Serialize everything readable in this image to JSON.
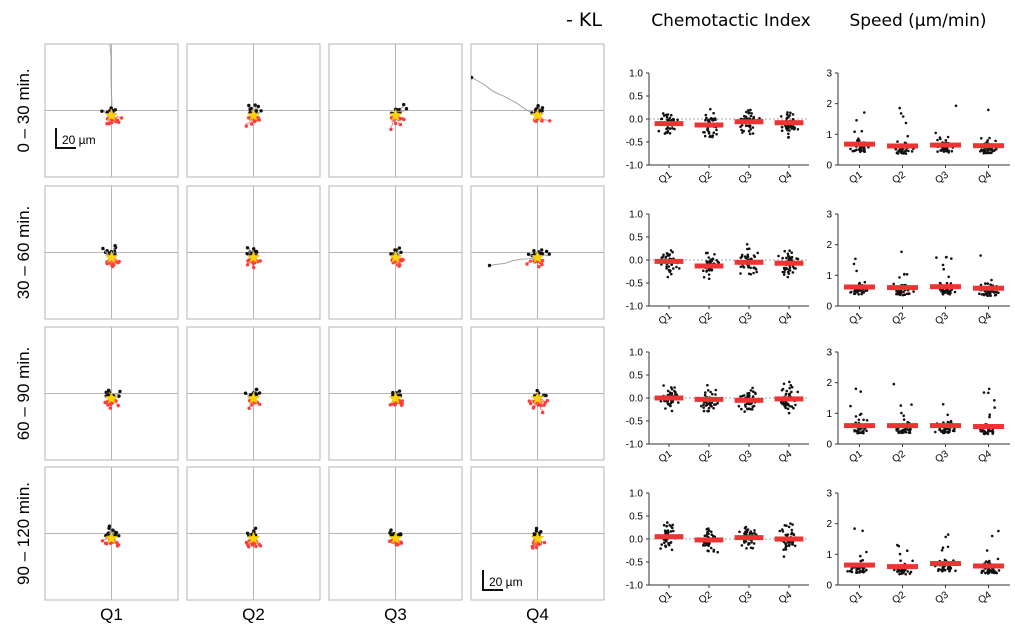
{
  "figure": {
    "condition_label": "- KL",
    "ci_title": "Chemotactic Index",
    "speed_title": "Speed (µm/min)",
    "row_labels": [
      "0 – 30 min.",
      "30 – 60 min.",
      "60 – 90 min.",
      "90 – 120 min."
    ],
    "column_labels": [
      "Q1",
      "Q2",
      "Q3",
      "Q4"
    ],
    "scale_bar_label": "20 µm",
    "colors": {
      "toward": "#ff3b3b",
      "away": "#111111",
      "track_away": "#999999",
      "star": "#ffd400",
      "mean_bar": "#ee3333"
    }
  },
  "chart_data": [
    {
      "type": "scatter",
      "title": "Chemotactic Index",
      "row": "0 – 30 min.",
      "categories": [
        "Q1",
        "Q2",
        "Q3",
        "Q4"
      ],
      "ylim": [
        -1.0,
        1.0
      ],
      "yticks": [
        "1.0",
        "0.5",
        "0.0",
        "-0.5",
        "-1.0"
      ],
      "means": [
        -0.1,
        -0.13,
        -0.06,
        -0.08
      ]
    },
    {
      "type": "scatter",
      "title": "Speed (µm/min)",
      "row": "0 – 30 min.",
      "categories": [
        "Q1",
        "Q2",
        "Q3",
        "Q4"
      ],
      "ylim": [
        0,
        3
      ],
      "yticks": [
        "3",
        "2",
        "1",
        "0"
      ],
      "means": [
        0.68,
        0.62,
        0.65,
        0.63
      ]
    },
    {
      "type": "scatter",
      "title": "Chemotactic Index",
      "row": "30 – 60 min.",
      "categories": [
        "Q1",
        "Q2",
        "Q3",
        "Q4"
      ],
      "ylim": [
        -1.0,
        1.0
      ],
      "yticks": [
        "1.0",
        "0.5",
        "0.0",
        "-0.5",
        "-1.0"
      ],
      "means": [
        -0.03,
        -0.13,
        -0.05,
        -0.07
      ]
    },
    {
      "type": "scatter",
      "title": "Speed (µm/min)",
      "row": "30 – 60 min.",
      "categories": [
        "Q1",
        "Q2",
        "Q3",
        "Q4"
      ],
      "ylim": [
        0,
        3
      ],
      "yticks": [
        "3",
        "2",
        "1",
        "0"
      ],
      "means": [
        0.62,
        0.6,
        0.63,
        0.58
      ]
    },
    {
      "type": "scatter",
      "title": "Chemotactic Index",
      "row": "60 – 90 min.",
      "categories": [
        "Q1",
        "Q2",
        "Q3",
        "Q4"
      ],
      "ylim": [
        -1.0,
        1.0
      ],
      "yticks": [
        "1.0",
        "0.5",
        "0.0",
        "-0.5",
        "-1.0"
      ],
      "means": [
        0.0,
        -0.03,
        -0.05,
        -0.02
      ]
    },
    {
      "type": "scatter",
      "title": "Speed (µm/min)",
      "row": "60 – 90 min.",
      "categories": [
        "Q1",
        "Q2",
        "Q3",
        "Q4"
      ],
      "ylim": [
        0,
        3
      ],
      "yticks": [
        "3",
        "2",
        "1",
        "0"
      ],
      "means": [
        0.6,
        0.6,
        0.6,
        0.57
      ]
    },
    {
      "type": "scatter",
      "title": "Chemotactic Index",
      "row": "90 – 120 min.",
      "categories": [
        "Q1",
        "Q2",
        "Q3",
        "Q4"
      ],
      "ylim": [
        -1.0,
        1.0
      ],
      "yticks": [
        "1.0",
        "0.5",
        "0.0",
        "-0.5",
        "-1.0"
      ],
      "means": [
        0.05,
        -0.02,
        0.03,
        0.0
      ]
    },
    {
      "type": "scatter",
      "title": "Speed (µm/min)",
      "row": "90 – 120 min.",
      "categories": [
        "Q1",
        "Q2",
        "Q3",
        "Q4"
      ],
      "ylim": [
        0,
        3
      ],
      "yticks": [
        "3",
        "2",
        "1",
        "0"
      ],
      "means": [
        0.65,
        0.6,
        0.7,
        0.62
      ]
    }
  ]
}
